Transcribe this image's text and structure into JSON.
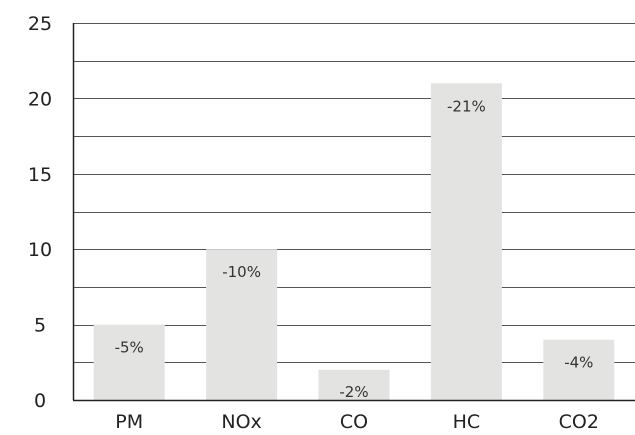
{
  "chart_data": {
    "type": "bar",
    "categories": [
      "PM",
      "NOx",
      "CO",
      "HC",
      "CO2"
    ],
    "values": [
      5,
      10,
      2,
      21,
      4
    ],
    "data_labels": [
      "-5%",
      "-10%",
      "-2%",
      "-21%",
      "-4%"
    ],
    "ylim": [
      0,
      25
    ],
    "y_ticks": [
      0,
      5,
      10,
      15,
      20,
      25
    ],
    "minor_gridlines": [
      2.5,
      7.5,
      12.5,
      17.5,
      22.5
    ],
    "grid": true,
    "legend": "none",
    "bar_color": "#e3e4e2",
    "grid_color": "#555555",
    "axis_color": "#222222"
  }
}
